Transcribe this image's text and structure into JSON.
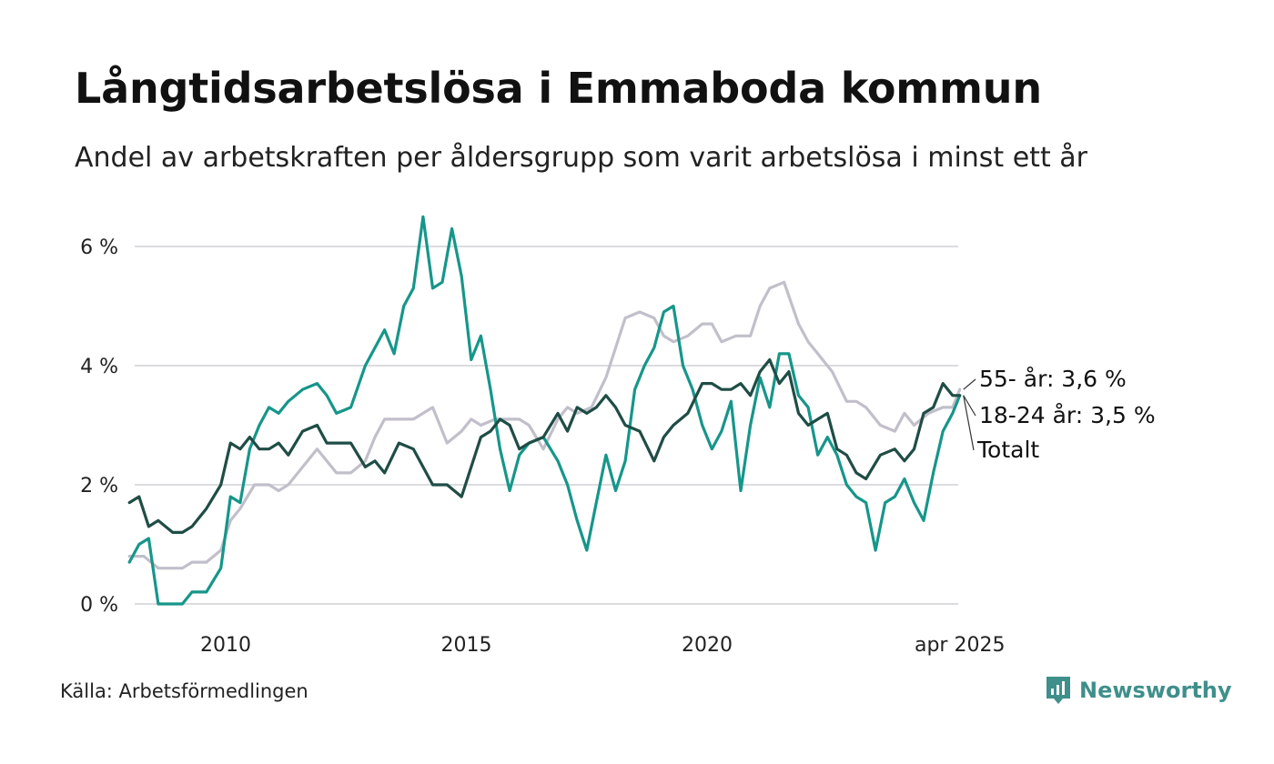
{
  "title": "Långtidsarbetslösa i Emmaboda kommun",
  "subtitle": "Andel av arbetskraften per åldersgrupp som varit arbetslösa i minst ett år",
  "source": "Källa: Arbetsförmedlingen",
  "brand": {
    "name": "Newsworthy",
    "icon": "newsworthy-logo-icon",
    "color": "#3f8f8b"
  },
  "chart_data": {
    "type": "line",
    "y_ticks": [
      0,
      2,
      4,
      6
    ],
    "y_tick_labels": [
      "0 %",
      "2 %",
      "4 %",
      "6 %"
    ],
    "x_ticks": [
      2010,
      2015,
      2020,
      2025.25
    ],
    "x_tick_labels": [
      "2010",
      "2015",
      "2020",
      "apr 2025"
    ],
    "xlim": [
      2008.0,
      2025.4
    ],
    "ylim": [
      0,
      6.6
    ],
    "grid": true,
    "series": [
      {
        "key": "s55",
        "color": "#c2bfcb",
        "end_label": "55- år: 3,6 %",
        "points": [
          [
            2008.0,
            0.8
          ],
          [
            2008.3,
            0.8
          ],
          [
            2008.6,
            0.6
          ],
          [
            2008.9,
            0.6
          ],
          [
            2009.1,
            0.6
          ],
          [
            2009.3,
            0.7
          ],
          [
            2009.6,
            0.7
          ],
          [
            2009.9,
            0.9
          ],
          [
            2010.1,
            1.4
          ],
          [
            2010.3,
            1.6
          ],
          [
            2010.6,
            2.0
          ],
          [
            2010.9,
            2.0
          ],
          [
            2011.1,
            1.9
          ],
          [
            2011.3,
            2.0
          ],
          [
            2011.6,
            2.3
          ],
          [
            2011.9,
            2.6
          ],
          [
            2012.1,
            2.4
          ],
          [
            2012.3,
            2.2
          ],
          [
            2012.6,
            2.2
          ],
          [
            2012.9,
            2.4
          ],
          [
            2013.1,
            2.8
          ],
          [
            2013.3,
            3.1
          ],
          [
            2013.6,
            3.1
          ],
          [
            2013.9,
            3.1
          ],
          [
            2014.1,
            3.2
          ],
          [
            2014.3,
            3.3
          ],
          [
            2014.6,
            2.7
          ],
          [
            2014.9,
            2.9
          ],
          [
            2015.1,
            3.1
          ],
          [
            2015.3,
            3.0
          ],
          [
            2015.6,
            3.1
          ],
          [
            2015.9,
            3.1
          ],
          [
            2016.1,
            3.1
          ],
          [
            2016.3,
            3.0
          ],
          [
            2016.6,
            2.6
          ],
          [
            2016.9,
            3.1
          ],
          [
            2017.1,
            3.3
          ],
          [
            2017.3,
            3.2
          ],
          [
            2017.6,
            3.3
          ],
          [
            2017.9,
            3.8
          ],
          [
            2018.1,
            4.3
          ],
          [
            2018.3,
            4.8
          ],
          [
            2018.6,
            4.9
          ],
          [
            2018.9,
            4.8
          ],
          [
            2019.1,
            4.5
          ],
          [
            2019.3,
            4.4
          ],
          [
            2019.6,
            4.5
          ],
          [
            2019.9,
            4.7
          ],
          [
            2020.1,
            4.7
          ],
          [
            2020.3,
            4.4
          ],
          [
            2020.6,
            4.5
          ],
          [
            2020.9,
            4.5
          ],
          [
            2021.1,
            5.0
          ],
          [
            2021.3,
            5.3
          ],
          [
            2021.6,
            5.4
          ],
          [
            2021.9,
            4.7
          ],
          [
            2022.1,
            4.4
          ],
          [
            2022.3,
            4.2
          ],
          [
            2022.6,
            3.9
          ],
          [
            2022.9,
            3.4
          ],
          [
            2023.1,
            3.4
          ],
          [
            2023.3,
            3.3
          ],
          [
            2023.6,
            3.0
          ],
          [
            2023.9,
            2.9
          ],
          [
            2024.1,
            3.2
          ],
          [
            2024.3,
            3.0
          ],
          [
            2024.6,
            3.2
          ],
          [
            2024.9,
            3.3
          ],
          [
            2025.1,
            3.3
          ],
          [
            2025.25,
            3.6
          ]
        ]
      },
      {
        "key": "s1824",
        "color": "#16968a",
        "end_label": "18-24 år: 3,5 %",
        "points": [
          [
            2008.0,
            0.7
          ],
          [
            2008.2,
            1.0
          ],
          [
            2008.4,
            1.1
          ],
          [
            2008.6,
            0.0
          ],
          [
            2008.9,
            0.0
          ],
          [
            2009.1,
            0.0
          ],
          [
            2009.3,
            0.2
          ],
          [
            2009.6,
            0.2
          ],
          [
            2009.9,
            0.6
          ],
          [
            2010.1,
            1.8
          ],
          [
            2010.3,
            1.7
          ],
          [
            2010.5,
            2.6
          ],
          [
            2010.7,
            3.0
          ],
          [
            2010.9,
            3.3
          ],
          [
            2011.1,
            3.2
          ],
          [
            2011.3,
            3.4
          ],
          [
            2011.6,
            3.6
          ],
          [
            2011.9,
            3.7
          ],
          [
            2012.1,
            3.5
          ],
          [
            2012.3,
            3.2
          ],
          [
            2012.6,
            3.3
          ],
          [
            2012.9,
            4.0
          ],
          [
            2013.1,
            4.3
          ],
          [
            2013.3,
            4.6
          ],
          [
            2013.5,
            4.2
          ],
          [
            2013.7,
            5.0
          ],
          [
            2013.9,
            5.3
          ],
          [
            2014.1,
            6.5
          ],
          [
            2014.3,
            5.3
          ],
          [
            2014.5,
            5.4
          ],
          [
            2014.7,
            6.3
          ],
          [
            2014.9,
            5.5
          ],
          [
            2015.1,
            4.1
          ],
          [
            2015.3,
            4.5
          ],
          [
            2015.5,
            3.6
          ],
          [
            2015.7,
            2.6
          ],
          [
            2015.9,
            1.9
          ],
          [
            2016.1,
            2.5
          ],
          [
            2016.3,
            2.7
          ],
          [
            2016.6,
            2.8
          ],
          [
            2016.9,
            2.4
          ],
          [
            2017.1,
            2.0
          ],
          [
            2017.3,
            1.4
          ],
          [
            2017.5,
            0.9
          ],
          [
            2017.7,
            1.7
          ],
          [
            2017.9,
            2.5
          ],
          [
            2018.1,
            1.9
          ],
          [
            2018.3,
            2.4
          ],
          [
            2018.5,
            3.6
          ],
          [
            2018.7,
            4.0
          ],
          [
            2018.9,
            4.3
          ],
          [
            2019.1,
            4.9
          ],
          [
            2019.3,
            5.0
          ],
          [
            2019.5,
            4.0
          ],
          [
            2019.7,
            3.6
          ],
          [
            2019.9,
            3.0
          ],
          [
            2020.1,
            2.6
          ],
          [
            2020.3,
            2.9
          ],
          [
            2020.5,
            3.4
          ],
          [
            2020.7,
            1.9
          ],
          [
            2020.9,
            3.0
          ],
          [
            2021.1,
            3.8
          ],
          [
            2021.3,
            3.3
          ],
          [
            2021.5,
            4.2
          ],
          [
            2021.7,
            4.2
          ],
          [
            2021.9,
            3.5
          ],
          [
            2022.1,
            3.3
          ],
          [
            2022.3,
            2.5
          ],
          [
            2022.5,
            2.8
          ],
          [
            2022.7,
            2.5
          ],
          [
            2022.9,
            2.0
          ],
          [
            2023.1,
            1.8
          ],
          [
            2023.3,
            1.7
          ],
          [
            2023.5,
            0.9
          ],
          [
            2023.7,
            1.7
          ],
          [
            2023.9,
            1.8
          ],
          [
            2024.1,
            2.1
          ],
          [
            2024.3,
            1.7
          ],
          [
            2024.5,
            1.4
          ],
          [
            2024.7,
            2.2
          ],
          [
            2024.9,
            2.9
          ],
          [
            2025.1,
            3.2
          ],
          [
            2025.25,
            3.5
          ]
        ]
      },
      {
        "key": "total",
        "color": "#1f4d45",
        "end_label": "Totalt",
        "points": [
          [
            2008.0,
            1.7
          ],
          [
            2008.2,
            1.8
          ],
          [
            2008.4,
            1.3
          ],
          [
            2008.6,
            1.4
          ],
          [
            2008.9,
            1.2
          ],
          [
            2009.1,
            1.2
          ],
          [
            2009.3,
            1.3
          ],
          [
            2009.6,
            1.6
          ],
          [
            2009.9,
            2.0
          ],
          [
            2010.1,
            2.7
          ],
          [
            2010.3,
            2.6
          ],
          [
            2010.5,
            2.8
          ],
          [
            2010.7,
            2.6
          ],
          [
            2010.9,
            2.6
          ],
          [
            2011.1,
            2.7
          ],
          [
            2011.3,
            2.5
          ],
          [
            2011.6,
            2.9
          ],
          [
            2011.9,
            3.0
          ],
          [
            2012.1,
            2.7
          ],
          [
            2012.3,
            2.7
          ],
          [
            2012.6,
            2.7
          ],
          [
            2012.9,
            2.3
          ],
          [
            2013.1,
            2.4
          ],
          [
            2013.3,
            2.2
          ],
          [
            2013.6,
            2.7
          ],
          [
            2013.9,
            2.6
          ],
          [
            2014.1,
            2.3
          ],
          [
            2014.3,
            2.0
          ],
          [
            2014.6,
            2.0
          ],
          [
            2014.9,
            1.8
          ],
          [
            2015.1,
            2.3
          ],
          [
            2015.3,
            2.8
          ],
          [
            2015.5,
            2.9
          ],
          [
            2015.7,
            3.1
          ],
          [
            2015.9,
            3.0
          ],
          [
            2016.1,
            2.6
          ],
          [
            2016.3,
            2.7
          ],
          [
            2016.6,
            2.8
          ],
          [
            2016.9,
            3.2
          ],
          [
            2017.1,
            2.9
          ],
          [
            2017.3,
            3.3
          ],
          [
            2017.5,
            3.2
          ],
          [
            2017.7,
            3.3
          ],
          [
            2017.9,
            3.5
          ],
          [
            2018.1,
            3.3
          ],
          [
            2018.3,
            3.0
          ],
          [
            2018.6,
            2.9
          ],
          [
            2018.9,
            2.4
          ],
          [
            2019.1,
            2.8
          ],
          [
            2019.3,
            3.0
          ],
          [
            2019.6,
            3.2
          ],
          [
            2019.9,
            3.7
          ],
          [
            2020.1,
            3.7
          ],
          [
            2020.3,
            3.6
          ],
          [
            2020.5,
            3.6
          ],
          [
            2020.7,
            3.7
          ],
          [
            2020.9,
            3.5
          ],
          [
            2021.1,
            3.9
          ],
          [
            2021.3,
            4.1
          ],
          [
            2021.5,
            3.7
          ],
          [
            2021.7,
            3.9
          ],
          [
            2021.9,
            3.2
          ],
          [
            2022.1,
            3.0
          ],
          [
            2022.3,
            3.1
          ],
          [
            2022.5,
            3.2
          ],
          [
            2022.7,
            2.6
          ],
          [
            2022.9,
            2.5
          ],
          [
            2023.1,
            2.2
          ],
          [
            2023.3,
            2.1
          ],
          [
            2023.6,
            2.5
          ],
          [
            2023.9,
            2.6
          ],
          [
            2024.1,
            2.4
          ],
          [
            2024.3,
            2.6
          ],
          [
            2024.5,
            3.2
          ],
          [
            2024.7,
            3.3
          ],
          [
            2024.9,
            3.7
          ],
          [
            2025.1,
            3.5
          ],
          [
            2025.25,
            3.5
          ]
        ]
      }
    ]
  }
}
